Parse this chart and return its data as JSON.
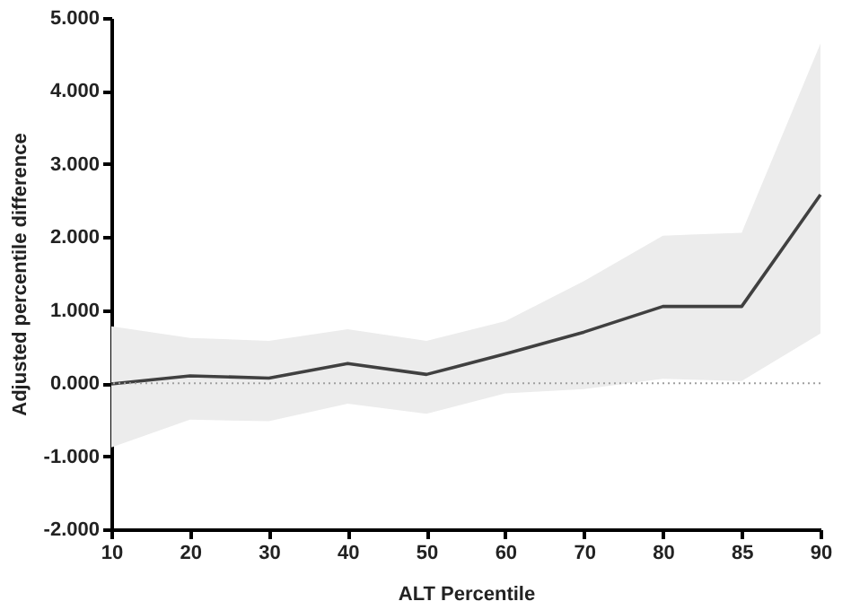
{
  "chart_data": {
    "type": "line",
    "xlabel": "ALT Percentile",
    "ylabel": "Adjusted percentile difference",
    "categories": [
      "10",
      "20",
      "30",
      "40",
      "50",
      "60",
      "70",
      "80",
      "85",
      "90"
    ],
    "series": [
      {
        "color": "#404040",
        "values": [
          -0.01,
          0.1,
          0.07,
          0.27,
          0.12,
          0.4,
          0.7,
          1.05,
          1.05,
          2.58
        ],
        "lower": [
          -0.88,
          -0.5,
          -0.52,
          -0.28,
          -0.42,
          -0.14,
          -0.08,
          0.06,
          0.03,
          0.68
        ],
        "upper": [
          0.78,
          0.62,
          0.58,
          0.74,
          0.58,
          0.85,
          1.4,
          2.02,
          2.06,
          4.65
        ]
      }
    ],
    "ylim": [
      -2,
      5
    ],
    "yticks": [
      {
        "value": -2,
        "label": "-2.000"
      },
      {
        "value": -1,
        "label": "-1.000"
      },
      {
        "value": 0,
        "label": "0.000"
      },
      {
        "value": 1,
        "label": "1.000"
      },
      {
        "value": 2,
        "label": "2.000"
      },
      {
        "value": 3,
        "label": "3.000"
      },
      {
        "value": 4,
        "label": "4.000"
      },
      {
        "value": 5,
        "label": "5.000"
      }
    ],
    "ref_lines": [
      {
        "axis": "y",
        "value": 0,
        "color": "#a0a0a0",
        "line_style": "dotted"
      }
    ],
    "grid": false,
    "marker": "none",
    "line_style": "solid"
  }
}
